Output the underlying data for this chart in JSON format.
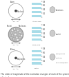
{
  "bg_color": "#ffffff",
  "rows": [
    {
      "circle_type": "atom",
      "circle_edge": "#999999",
      "circle_fill": "#ffffff",
      "inner_label": "Nucleus",
      "size_label": "~10⁻¹°m",
      "top_label": "Atom",
      "scale_label": "Atomic Size",
      "scale_bars": 4,
      "scale_bar_color": "#a8dce8",
      "tick_values": [
        "0.2",
        "0.4",
        "0.6",
        "0.8",
        "1.0"
      ],
      "legend_label": "electrons",
      "legend_dot_color": "#999999"
    },
    {
      "circle_type": "nucleus",
      "circle_edge": "#888888",
      "circle_fill": "#bbbbbb",
      "inner_label": "",
      "size_label": "~10⁻¹⁴m",
      "top_label_left": "Nuclei",
      "top_label_right": "Nucleons",
      "scale_label": "Comp./Mag.",
      "scale_bars": 4,
      "scale_bar_color": "#a8dce8",
      "tick_values": [
        "0.2",
        "0.4",
        "0.6",
        "0.8",
        "1.0"
      ],
      "legend_label": "nuclei",
      "legend_dot_color": "#999999"
    },
    {
      "circle_type": "proton",
      "circle_edge": "#999999",
      "circle_fill": "#ffffff",
      "inner_label": "Bi-Quarks",
      "size_label": "~10⁻¹⁵m",
      "top_label": "Proton",
      "scale_label": "Proton",
      "scale_bars": 4,
      "scale_bar_color": "#a8dce8",
      "tick_values": [
        "0.2",
        "0.4",
        "0.6",
        "0.8",
        "1.0"
      ],
      "legend_labels": [
        "quarks/gluons",
        "(particles)",
        "non-meson/meson"
      ],
      "legend_dot_color": "#999999"
    }
  ],
  "caption": "The order of magnitude of the excitation energies of each of the systems is\nindicated",
  "caption_fontsize": 2.0,
  "label_fontsize": 2.5,
  "tiny_fontsize": 1.8,
  "tick_fontsize": 1.9
}
